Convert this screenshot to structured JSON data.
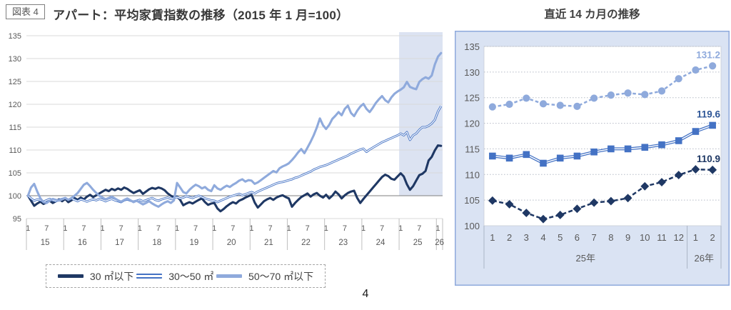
{
  "header": {
    "figure_badge": "図表 4",
    "title": "アパート：平均家賃指数の推移（2015 年 1 月=100）",
    "right_title": "直近 14 カ月の推移"
  },
  "page": {
    "number": "4"
  },
  "colors": {
    "navy": "#1F3864",
    "blue": "#4472C4",
    "light_blue": "#8FAADC",
    "highlight": "#DCE3F2",
    "panel_bg": "#DAE3F3",
    "panel_border": "#8FAADC",
    "grid": "#D9D9D9",
    "grid_100": "#7F7F7F",
    "axis_text": "#595959"
  },
  "legend": {
    "items": [
      {
        "key": "under-30sqm",
        "label": "30 ㎡以下",
        "style": "solid",
        "color": "#1F3864"
      },
      {
        "key": "30-50sqm",
        "label": "30～50 ㎡",
        "style": "double",
        "color": "#4472C4"
      },
      {
        "key": "50-70sqm",
        "label": "50～70 ㎡以下",
        "style": "solid",
        "color": "#8FAADC"
      }
    ]
  },
  "chart_data": [
    {
      "type": "line",
      "title": "アパート：平均家賃指数の推移（2015年1月=100）",
      "x_start": "2015-01",
      "x_end": "2026-02",
      "x_month_ticks": [
        "1",
        "7"
      ],
      "x_year_labels": [
        "15",
        "16",
        "17",
        "18",
        "19",
        "20",
        "21",
        "22",
        "23",
        "24",
        "25",
        "26"
      ],
      "ylim": [
        95,
        135
      ],
      "yticks": [
        95,
        100,
        105,
        110,
        115,
        120,
        125,
        130,
        135
      ],
      "baseline": 100,
      "highlight_start_index": 120,
      "highlight_color": "#DCE3F2",
      "legend_position": "bottom",
      "grid": true,
      "series": [
        {
          "key": "under-30sqm",
          "name": "30㎡以下",
          "color": "#1F3864",
          "line_style": "solid",
          "values": [
            100.0,
            98.9,
            97.8,
            98.3,
            98.7,
            98.2,
            98.5,
            98.9,
            98.4,
            98.8,
            99.2,
            98.8,
            99.3,
            98.6,
            99.0,
            99.5,
            99.1,
            99.6,
            99.2,
            99.8,
            100.2,
            99.7,
            100.1,
            100.5,
            100.9,
            101.3,
            101.0,
            101.5,
            101.2,
            101.6,
            101.3,
            101.8,
            101.5,
            101.0,
            100.6,
            100.9,
            101.2,
            100.4,
            100.9,
            101.4,
            101.7,
            101.5,
            101.8,
            101.6,
            101.2,
            100.5,
            100.0,
            99.7,
            99.8,
            99.1,
            97.9,
            98.3,
            98.6,
            98.3,
            98.7,
            99.1,
            99.4,
            98.6,
            98.0,
            98.3,
            98.4,
            97.2,
            96.6,
            97.1,
            97.7,
            98.2,
            98.6,
            98.3,
            98.9,
            99.2,
            99.6,
            99.9,
            100.2,
            98.5,
            97.4,
            98.1,
            98.8,
            99.2,
            99.5,
            99.1,
            99.6,
            99.9,
            100.1,
            99.7,
            99.4,
            97.6,
            98.4,
            99.1,
            99.7,
            100.1,
            100.5,
            99.8,
            100.3,
            100.6,
            100.0,
            99.6,
            100.2,
            99.4,
            100.0,
            100.9,
            100.3,
            99.4,
            100.1,
            100.6,
            100.9,
            101.1,
            99.5,
            98.4,
            99.3,
            100.1,
            100.9,
            101.7,
            102.5,
            103.3,
            104.1,
            104.6,
            104.3,
            103.7,
            103.5,
            104.2,
            104.9,
            104.2,
            102.5,
            101.3,
            102.1,
            103.3,
            104.5,
            104.8,
            105.4,
            107.7,
            108.5,
            109.9,
            111.0,
            110.9
          ]
        },
        {
          "key": "30-50sqm",
          "name": "30～50㎡",
          "color": "#4472C4",
          "line_style": "double",
          "values": [
            100.0,
            99.4,
            98.9,
            99.2,
            99.0,
            98.7,
            99.0,
            99.3,
            99.0,
            98.8,
            99.1,
            99.3,
            99.5,
            99.1,
            99.4,
            99.1,
            98.8,
            99.2,
            99.0,
            98.7,
            99.0,
            99.2,
            99.0,
            99.3,
            99.1,
            98.8,
            99.1,
            99.3,
            99.0,
            98.8,
            98.6,
            99.0,
            99.2,
            98.9,
            98.7,
            98.9,
            99.1,
            98.8,
            99.0,
            99.3,
            99.5,
            99.1,
            98.9,
            99.2,
            99.4,
            99.6,
            99.3,
            99.5,
            99.7,
            99.4,
            99.6,
            99.9,
            99.7,
            99.5,
            99.8,
            100.0,
            99.7,
            99.4,
            99.2,
            99.0,
            98.9,
            98.6,
            98.9,
            99.2,
            99.5,
            99.8,
            100.0,
            100.2,
            100.4,
            100.1,
            100.3,
            100.6,
            100.8,
            100.5,
            100.9,
            101.2,
            101.5,
            101.8,
            102.1,
            102.4,
            102.7,
            102.9,
            103.0,
            103.2,
            103.4,
            103.6,
            103.9,
            104.1,
            104.4,
            104.7,
            105.0,
            105.3,
            105.7,
            106.0,
            106.3,
            106.5,
            106.7,
            107.0,
            107.3,
            107.6,
            107.9,
            108.2,
            108.5,
            108.8,
            109.2,
            109.5,
            109.8,
            110.1,
            110.3,
            109.6,
            110.1,
            110.5,
            110.9,
            111.3,
            111.7,
            112.0,
            112.3,
            112.6,
            112.9,
            113.2,
            113.6,
            113.2,
            113.9,
            112.2,
            113.2,
            113.6,
            114.4,
            115.0,
            115.0,
            115.3,
            115.8,
            116.6,
            118.4,
            119.6
          ]
        },
        {
          "key": "50-70sqm",
          "name": "50～70㎡以下",
          "color": "#8FAADC",
          "line_style": "solid",
          "values": [
            100.0,
            101.8,
            102.6,
            100.9,
            99.4,
            98.6,
            98.4,
            98.9,
            99.3,
            99.1,
            98.9,
            99.2,
            99.5,
            99.1,
            99.5,
            100.0,
            100.6,
            101.5,
            102.4,
            102.8,
            102.1,
            101.3,
            100.6,
            100.0,
            99.6,
            99.2,
            99.5,
            99.8,
            99.4,
            99.0,
            98.7,
            99.1,
            99.4,
            99.0,
            98.6,
            98.9,
            98.5,
            98.1,
            98.4,
            98.8,
            98.3,
            97.9,
            97.6,
            98.1,
            98.5,
            98.8,
            98.4,
            99.0,
            102.8,
            101.8,
            100.8,
            100.5,
            101.3,
            101.9,
            102.4,
            102.1,
            101.6,
            101.9,
            101.3,
            101.0,
            102.3,
            101.6,
            101.3,
            101.8,
            102.2,
            101.9,
            102.4,
            102.8,
            103.3,
            103.6,
            103.1,
            103.4,
            103.3,
            102.6,
            102.9,
            103.4,
            103.9,
            104.4,
            104.9,
            105.4,
            105.1,
            106.0,
            106.4,
            106.7,
            107.1,
            107.8,
            108.6,
            109.5,
            110.2,
            109.3,
            110.5,
            111.8,
            113.2,
            114.9,
            116.9,
            115.4,
            114.6,
            115.5,
            116.8,
            117.5,
            118.3,
            117.6,
            119.0,
            119.7,
            118.1,
            117.4,
            118.6,
            119.5,
            120.1,
            119.0,
            118.3,
            119.2,
            120.3,
            121.1,
            121.8,
            120.9,
            120.4,
            121.5,
            122.3,
            122.8,
            123.2,
            123.7,
            124.9,
            123.8,
            123.5,
            123.3,
            124.9,
            125.5,
            125.9,
            125.6,
            126.3,
            128.7,
            130.4,
            131.2
          ]
        }
      ]
    },
    {
      "type": "line",
      "title": "直近14カ月の推移",
      "categories": [
        "1",
        "2",
        "3",
        "4",
        "5",
        "6",
        "7",
        "8",
        "9",
        "10",
        "11",
        "12",
        "1",
        "2"
      ],
      "year_groups": [
        {
          "label": "25年",
          "span": 12
        },
        {
          "label": "26年",
          "span": 2
        }
      ],
      "ylim": [
        100,
        135
      ],
      "yticks": [
        100,
        105,
        110,
        115,
        120,
        125,
        130,
        135
      ],
      "panel_bg": "#DAE3F3",
      "panel_border": "#8FAADC",
      "grid": "dotted",
      "series": [
        {
          "key": "under-30sqm",
          "name": "30㎡以下",
          "color": "#1F3864",
          "marker": "diamond",
          "connector": "dashed",
          "values": [
            104.9,
            104.2,
            102.5,
            101.3,
            102.1,
            103.3,
            104.5,
            104.8,
            105.4,
            107.7,
            108.5,
            109.9,
            111.0,
            110.9
          ],
          "end_label": "110.9",
          "end_label_color": "#1F3864"
        },
        {
          "key": "30-50sqm",
          "name": "30～50㎡",
          "color": "#4472C4",
          "marker": "square",
          "connector": "double",
          "values": [
            113.6,
            113.2,
            113.9,
            112.2,
            113.2,
            113.6,
            114.4,
            115.0,
            115.0,
            115.3,
            115.8,
            116.6,
            118.4,
            119.6
          ],
          "end_label": "119.6",
          "end_label_color": "#2E5697"
        },
        {
          "key": "50-70sqm",
          "name": "50～70㎡以下",
          "color": "#8FAADC",
          "marker": "circle",
          "connector": "dashed",
          "values": [
            123.2,
            123.7,
            124.9,
            123.8,
            123.5,
            123.3,
            124.9,
            125.5,
            125.9,
            125.6,
            126.3,
            128.7,
            130.4,
            131.2
          ],
          "end_label": "131.2",
          "end_label_color": "#8FAADC"
        }
      ]
    }
  ]
}
